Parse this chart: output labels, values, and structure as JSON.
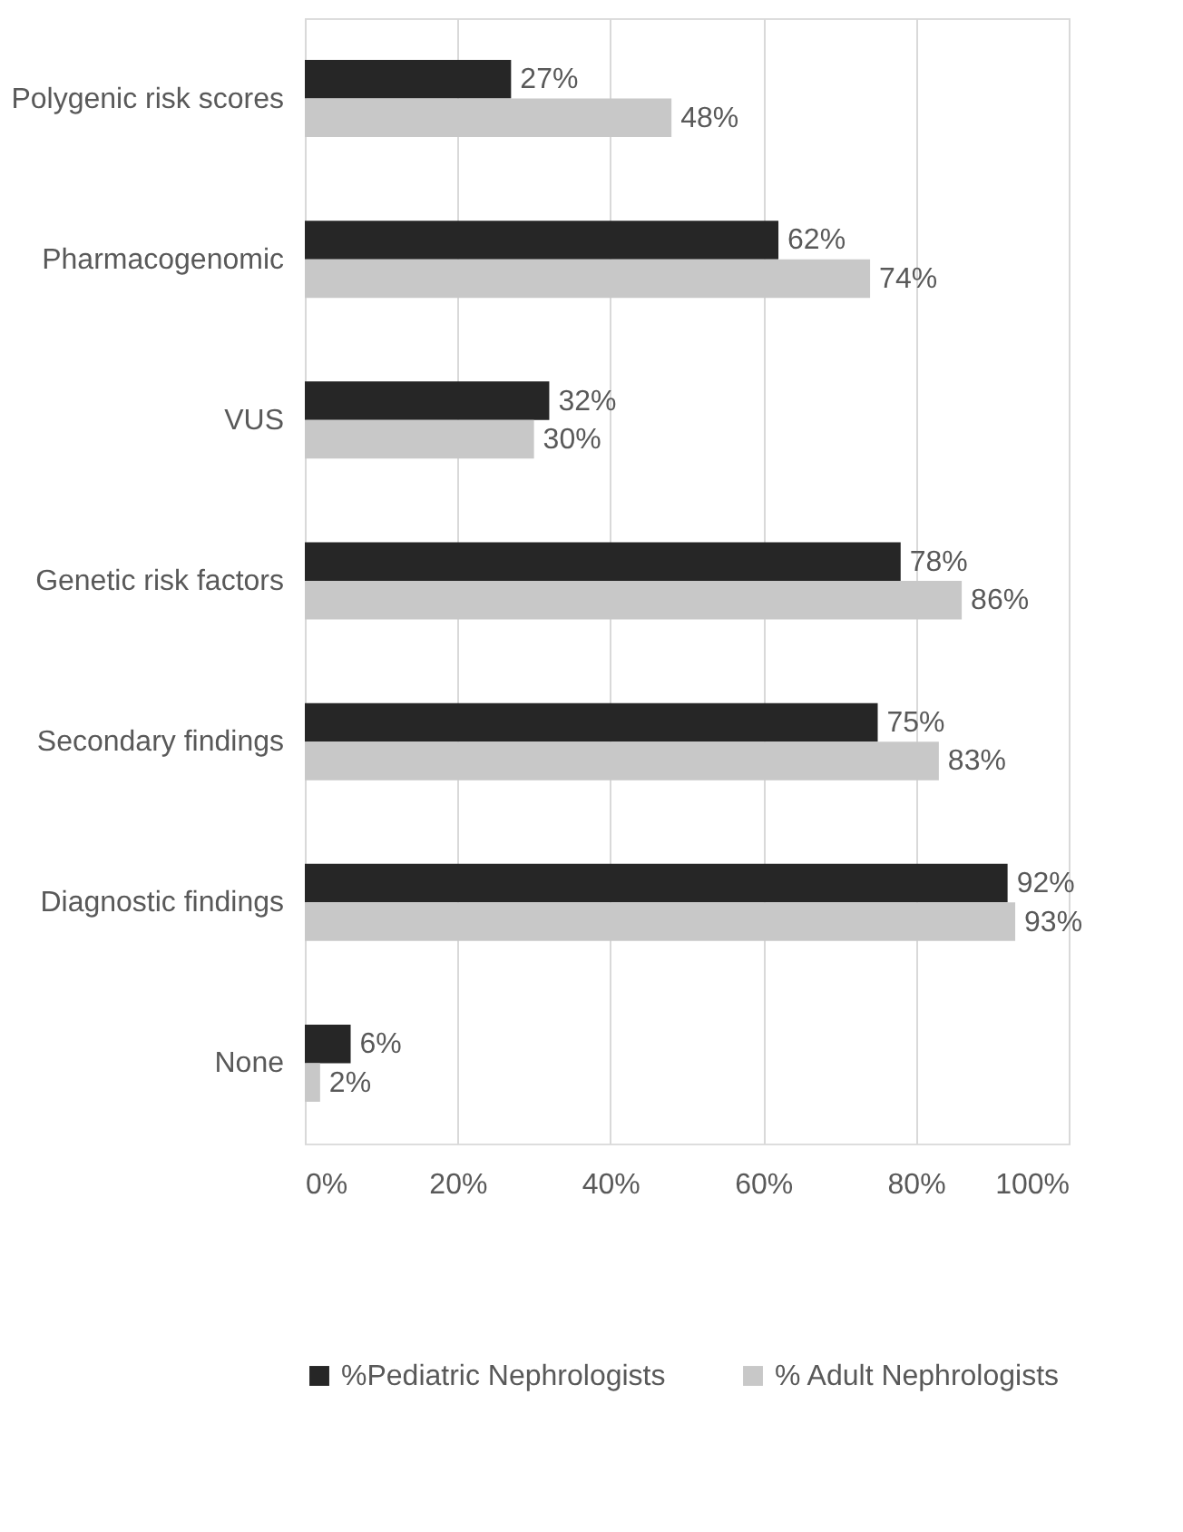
{
  "chart_data": {
    "type": "bar",
    "orientation": "horizontal",
    "categories": [
      "Polygenic risk scores",
      "Pharmacogenomic",
      "VUS",
      "Genetic risk factors",
      "Secondary findings",
      "Diagnostic findings",
      "None"
    ],
    "series": [
      {
        "name": "%Pediatric Nephrologists",
        "color": "#262626",
        "values": [
          27,
          62,
          32,
          78,
          75,
          92,
          6
        ],
        "value_labels": [
          "27%",
          "62%",
          "32%",
          "78%",
          "75%",
          "92%",
          "6%"
        ]
      },
      {
        "name": "% Adult Nephrologists",
        "color": "#c8c8c8",
        "values": [
          48,
          74,
          30,
          86,
          83,
          93,
          2
        ],
        "value_labels": [
          "48%",
          "74%",
          "30%",
          "86%",
          "83%",
          "93%",
          "2%"
        ]
      }
    ],
    "xlim": [
      0,
      100
    ],
    "xticks": [
      {
        "value": 0,
        "label": "0%"
      },
      {
        "value": 20,
        "label": "20%"
      },
      {
        "value": 40,
        "label": "40%"
      },
      {
        "value": 60,
        "label": "60%"
      },
      {
        "value": 80,
        "label": "80%"
      },
      {
        "value": 100,
        "label": "100%"
      }
    ],
    "grid": "x",
    "legend": "bottom"
  }
}
